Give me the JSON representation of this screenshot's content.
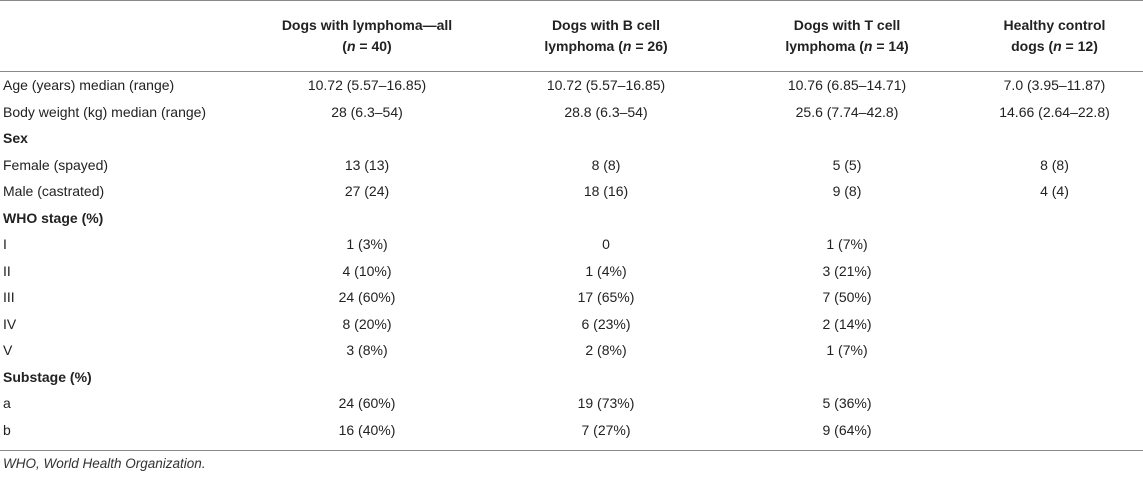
{
  "table": {
    "headers": [
      "",
      "Dogs with lymphoma—all (n = 40)",
      "Dogs with B cell lymphoma (n = 26)",
      "Dogs with T cell lymphoma (n = 14)",
      "Healthy control dogs (n = 12)"
    ],
    "header_parts": [
      {
        "line1": "Dogs with lymphoma—all",
        "prefix": "(",
        "n": "n",
        "rest": " = 40)"
      },
      {
        "line1": "Dogs with B cell",
        "line2a": "lymphoma (",
        "n": "n",
        "rest": " = 26)"
      },
      {
        "line1": "Dogs with T cell",
        "line2a": "lymphoma (",
        "n": "n",
        "rest": " = 14)"
      },
      {
        "line1": "Healthy control",
        "line2a": "dogs (",
        "n": "n",
        "rest": " = 12)"
      }
    ],
    "rows": [
      {
        "section": false,
        "cells": [
          "Age (years) median (range)",
          "10.72 (5.57–16.85)",
          "10.72 (5.57–16.85)",
          "10.76 (6.85–14.71)",
          "7.0 (3.95–11.87)"
        ]
      },
      {
        "section": false,
        "cells": [
          "Body weight (kg) median (range)",
          "28 (6.3–54)",
          "28.8 (6.3–54)",
          "25.6 (7.74–42.8)",
          "14.66 (2.64–22.8)"
        ]
      },
      {
        "section": true,
        "cells": [
          "Sex",
          "",
          "",
          "",
          ""
        ]
      },
      {
        "section": false,
        "cells": [
          "Female (spayed)",
          "13 (13)",
          "8 (8)",
          "5 (5)",
          "8 (8)"
        ]
      },
      {
        "section": false,
        "cells": [
          "Male (castrated)",
          "27 (24)",
          "18 (16)",
          "9 (8)",
          "4 (4)"
        ]
      },
      {
        "section": true,
        "cells": [
          "WHO stage (%)",
          "",
          "",
          "",
          ""
        ]
      },
      {
        "section": false,
        "cells": [
          "I",
          "1 (3%)",
          "0",
          "1 (7%)",
          ""
        ]
      },
      {
        "section": false,
        "cells": [
          "II",
          "4 (10%)",
          "1 (4%)",
          "3 (21%)",
          ""
        ]
      },
      {
        "section": false,
        "cells": [
          "III",
          "24 (60%)",
          "17 (65%)",
          "7 (50%)",
          ""
        ]
      },
      {
        "section": false,
        "cells": [
          "IV",
          "8 (20%)",
          "6 (23%)",
          "2 (14%)",
          ""
        ]
      },
      {
        "section": false,
        "cells": [
          "V",
          "3 (8%)",
          "2 (8%)",
          "1 (7%)",
          ""
        ]
      },
      {
        "section": true,
        "cells": [
          "Substage (%)",
          "",
          "",
          "",
          ""
        ]
      },
      {
        "section": false,
        "cells": [
          "a",
          "24 (60%)",
          "19 (73%)",
          "5 (36%)",
          ""
        ]
      },
      {
        "section": false,
        "cells": [
          "b",
          "16 (40%)",
          "7 (27%)",
          "9 (64%)",
          ""
        ]
      }
    ]
  },
  "footnote": "WHO, World Health Organization."
}
